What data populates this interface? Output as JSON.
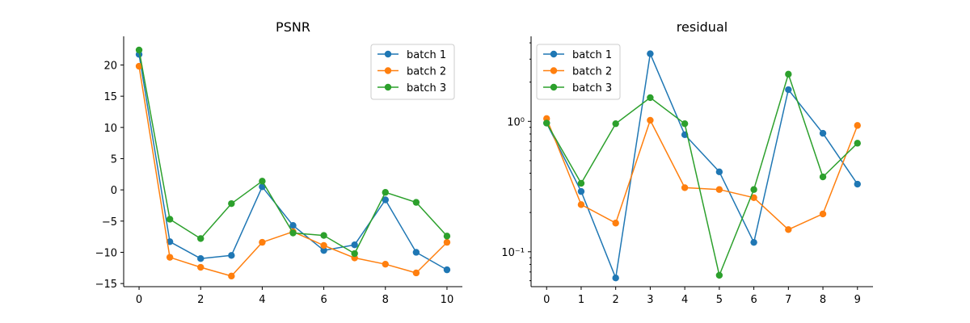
{
  "chart_data": [
    {
      "type": "line",
      "title": "PSNR",
      "xlabel": "",
      "ylabel": "",
      "yscale": "linear",
      "xlim": [
        -0.5,
        10.5
      ],
      "ylim": [
        -15.5,
        24.2
      ],
      "xticks": [
        0,
        2,
        4,
        6,
        8,
        10
      ],
      "yticks": [
        -15,
        -10,
        -5,
        0,
        5,
        10,
        15,
        20
      ],
      "xtick_labels": [
        "0",
        "2",
        "4",
        "6",
        "8",
        "10"
      ],
      "ytick_labels": [
        "−15",
        "−10",
        "−5",
        "0",
        "5",
        "10",
        "15",
        "20"
      ],
      "grid": false,
      "legend_position": "upper right",
      "x": [
        0,
        1,
        2,
        3,
        4,
        5,
        6,
        7,
        8,
        9,
        10
      ],
      "series": [
        {
          "name": "batch 1",
          "color": "#1f77b4",
          "values": [
            21.7,
            -8.3,
            -11.0,
            -10.5,
            0.5,
            -5.7,
            -9.7,
            -8.8,
            -1.6,
            -10.0,
            -12.8
          ]
        },
        {
          "name": "batch 2",
          "color": "#ff7f0e",
          "values": [
            19.8,
            -10.8,
            -12.4,
            -13.8,
            -8.4,
            -6.7,
            -8.9,
            -10.9,
            -11.9,
            -13.3,
            -8.4
          ]
        },
        {
          "name": "batch 3",
          "color": "#2ca02c",
          "values": [
            22.4,
            -4.7,
            -7.8,
            -2.2,
            1.4,
            -6.9,
            -7.3,
            -10.2,
            -0.4,
            -2.0,
            -7.4
          ]
        }
      ]
    },
    {
      "type": "line",
      "title": "residual",
      "xlabel": "",
      "ylabel": "",
      "yscale": "log",
      "xlim": [
        -0.45,
        9.45
      ],
      "ylim": [
        0.054,
        4.3
      ],
      "xticks": [
        0,
        1,
        2,
        3,
        4,
        5,
        6,
        7,
        8,
        9
      ],
      "yticks": [
        0.1,
        1
      ],
      "xtick_labels": [
        "0",
        "1",
        "2",
        "3",
        "4",
        "5",
        "6",
        "7",
        "8",
        "9"
      ],
      "ytick_labels": [
        "10⁻¹",
        "10⁰"
      ],
      "grid": false,
      "legend_position": "upper left",
      "x": [
        0,
        1,
        2,
        3,
        4,
        5,
        6,
        7,
        8,
        9
      ],
      "series": [
        {
          "name": "batch 1",
          "color": "#1f77b4",
          "values": [
            0.97,
            0.29,
            0.063,
            3.3,
            0.79,
            0.41,
            0.118,
            1.75,
            0.81,
            0.33
          ]
        },
        {
          "name": "batch 2",
          "color": "#ff7f0e",
          "values": [
            1.05,
            0.23,
            0.166,
            1.02,
            0.31,
            0.3,
            0.26,
            0.148,
            0.195,
            0.93
          ]
        },
        {
          "name": "batch 3",
          "color": "#2ca02c",
          "values": [
            0.97,
            0.335,
            0.96,
            1.52,
            0.96,
            0.066,
            0.3,
            2.3,
            0.375,
            0.68
          ]
        }
      ]
    }
  ]
}
